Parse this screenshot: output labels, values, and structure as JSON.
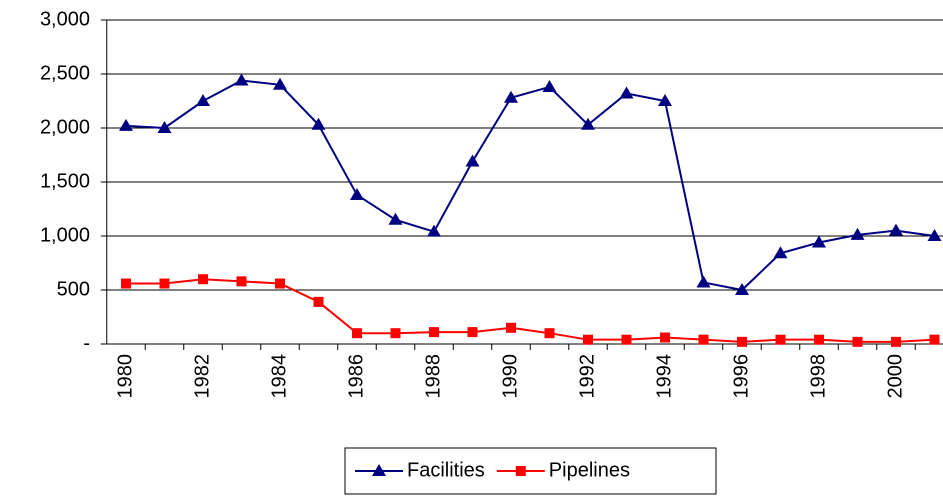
{
  "chart_data": {
    "type": "line",
    "categories": [
      "1980",
      null,
      "1982",
      null,
      "1984",
      null,
      "1986",
      null,
      "1988",
      null,
      "1990",
      null,
      "1992",
      null,
      "1994",
      null,
      "1996",
      null,
      "1998",
      null,
      "2000",
      null
    ],
    "series": [
      {
        "name": "Facilities",
        "color": "#000080",
        "marker": "triangle",
        "values": [
          2020,
          2000,
          2250,
          2440,
          2400,
          2030,
          1380,
          1150,
          1040,
          1690,
          2280,
          2380,
          2030,
          2320,
          2250,
          570,
          500,
          840,
          940,
          1010,
          1050,
          1000
        ]
      },
      {
        "name": "Pipelines",
        "color": "#ff0000",
        "marker": "square",
        "values": [
          560,
          560,
          600,
          580,
          560,
          390,
          100,
          100,
          110,
          110,
          150,
          100,
          40,
          40,
          60,
          40,
          20,
          40,
          40,
          20,
          20,
          40
        ]
      }
    ],
    "ylim": [
      0,
      3000
    ],
    "yticks": [
      {
        "value": 0,
        "label": "-"
      },
      500,
      {
        "value": 1000,
        "label": "1,000"
      },
      {
        "value": 1500,
        "label": "1,500"
      },
      {
        "value": 2000,
        "label": "2,000"
      },
      {
        "value": 2500,
        "label": "2,500"
      },
      {
        "value": 3000,
        "label": "3,000"
      }
    ],
    "grid": true,
    "legend": "bottom"
  }
}
